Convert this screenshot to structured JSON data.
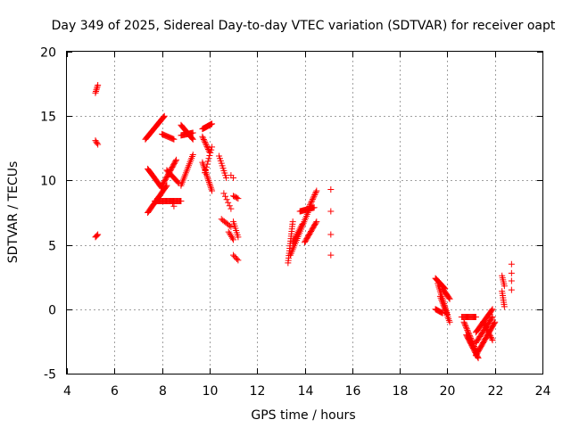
{
  "chart_data": {
    "type": "scatter",
    "title": "Day 349 of 2025, Sidereal Day-to-day VTEC variation (SDTVAR) for receiver oapt",
    "xlabel": "GPS time / hours",
    "ylabel": "SDTVAR / TECUs",
    "xlim": [
      4,
      24
    ],
    "ylim": [
      -5,
      20
    ],
    "xticks": [
      4,
      6,
      8,
      10,
      12,
      14,
      16,
      18,
      20,
      22,
      24
    ],
    "yticks": [
      -5,
      0,
      5,
      10,
      15,
      20
    ],
    "grid": true,
    "marker": "+",
    "color": "#ff0000",
    "segments": [
      {
        "x": [
          5.2,
          5.3
        ],
        "y": [
          16.8,
          17.4
        ],
        "n": 6
      },
      {
        "x": [
          5.2,
          5.3
        ],
        "y": [
          13.1,
          12.8
        ],
        "n": 4
      },
      {
        "x": [
          5.2,
          5.3
        ],
        "y": [
          5.6,
          5.8
        ],
        "n": 4
      },
      {
        "x": [
          7.3,
          8.1
        ],
        "y": [
          13.2,
          15.0
        ],
        "n": 30
      },
      {
        "x": [
          8.0,
          8.5
        ],
        "y": [
          13.6,
          13.2
        ],
        "n": 14
      },
      {
        "x": [
          7.4,
          8.0
        ],
        "y": [
          10.9,
          9.4
        ],
        "n": 22
      },
      {
        "x": [
          7.4,
          8.2
        ],
        "y": [
          7.5,
          9.6
        ],
        "n": 28
      },
      {
        "x": [
          7.7,
          8.8
        ],
        "y": [
          8.4,
          8.4
        ],
        "n": 34
      },
      {
        "x": [
          8.0,
          8.6
        ],
        "y": [
          9.6,
          11.6
        ],
        "n": 22
      },
      {
        "x": [
          8.2,
          8.7
        ],
        "y": [
          10.8,
          9.8
        ],
        "n": 14
      },
      {
        "x": [
          8.4,
          8.5
        ],
        "y": [
          8.4,
          8.0
        ],
        "n": 3
      },
      {
        "x": [
          8.8,
          9.3
        ],
        "y": [
          14.3,
          13.2
        ],
        "n": 18
      },
      {
        "x": [
          8.8,
          9.3
        ],
        "y": [
          13.5,
          13.7
        ],
        "n": 16
      },
      {
        "x": [
          8.8,
          9.3
        ],
        "y": [
          9.6,
          12.0
        ],
        "n": 18
      },
      {
        "x": [
          9.7,
          10.1
        ],
        "y": [
          14.0,
          14.4
        ],
        "n": 16
      },
      {
        "x": [
          9.7,
          10.0
        ],
        "y": [
          13.4,
          12.2
        ],
        "n": 12
      },
      {
        "x": [
          9.7,
          10.1
        ],
        "y": [
          11.4,
          9.2
        ],
        "n": 18
      },
      {
        "x": [
          9.8,
          10.1
        ],
        "y": [
          10.6,
          12.6
        ],
        "n": 10
      },
      {
        "x": [
          10.4,
          10.7
        ],
        "y": [
          11.9,
          10.2
        ],
        "n": 10
      },
      {
        "x": [
          10.5,
          10.9
        ],
        "y": [
          7.0,
          6.4
        ],
        "n": 8
      },
      {
        "x": [
          10.6,
          10.9
        ],
        "y": [
          9.0,
          7.8
        ],
        "n": 6
      },
      {
        "x": [
          10.8,
          11.0
        ],
        "y": [
          6.0,
          5.4
        ],
        "n": 6
      },
      {
        "x": [
          10.9,
          11.0
        ],
        "y": [
          10.4,
          10.2
        ],
        "n": 2
      },
      {
        "x": [
          11.0,
          11.2
        ],
        "y": [
          8.8,
          8.6
        ],
        "n": 5
      },
      {
        "x": [
          11.0,
          11.2
        ],
        "y": [
          6.8,
          5.6
        ],
        "n": 8
      },
      {
        "x": [
          11.0,
          11.2
        ],
        "y": [
          4.2,
          3.8
        ],
        "n": 5
      },
      {
        "x": [
          13.3,
          13.5
        ],
        "y": [
          3.6,
          6.8
        ],
        "n": 18
      },
      {
        "x": [
          13.4,
          14.2
        ],
        "y": [
          4.2,
          7.8
        ],
        "n": 26
      },
      {
        "x": [
          13.5,
          13.9
        ],
        "y": [
          5.2,
          6.6
        ],
        "n": 12
      },
      {
        "x": [
          13.8,
          14.4
        ],
        "y": [
          7.6,
          7.9
        ],
        "n": 20
      },
      {
        "x": [
          14.0,
          14.5
        ],
        "y": [
          5.2,
          6.8
        ],
        "n": 18
      },
      {
        "x": [
          14.2,
          14.5
        ],
        "y": [
          8.0,
          9.2
        ],
        "n": 12
      },
      {
        "x": [
          15.1,
          15.1
        ],
        "y": [
          9.3,
          9.3
        ],
        "n": 1
      },
      {
        "x": [
          15.1,
          15.1
        ],
        "y": [
          7.6,
          7.6
        ],
        "n": 1
      },
      {
        "x": [
          15.1,
          15.1
        ],
        "y": [
          5.8,
          5.8
        ],
        "n": 1
      },
      {
        "x": [
          15.1,
          15.1
        ],
        "y": [
          4.2,
          4.2
        ],
        "n": 1
      },
      {
        "x": [
          19.5,
          19.9
        ],
        "y": [
          2.4,
          1.6
        ],
        "n": 16
      },
      {
        "x": [
          19.5,
          19.8
        ],
        "y": [
          0.0,
          -0.3
        ],
        "n": 10
      },
      {
        "x": [
          19.6,
          20.0
        ],
        "y": [
          2.0,
          -0.4
        ],
        "n": 18
      },
      {
        "x": [
          19.7,
          20.1
        ],
        "y": [
          1.0,
          -1.0
        ],
        "n": 16
      },
      {
        "x": [
          19.8,
          20.1
        ],
        "y": [
          1.6,
          0.8
        ],
        "n": 12
      },
      {
        "x": [
          20.6,
          21.2
        ],
        "y": [
          -0.6,
          -0.6
        ],
        "n": 18
      },
      {
        "x": [
          20.7,
          21.2
        ],
        "y": [
          -1.0,
          -3.2
        ],
        "n": 22
      },
      {
        "x": [
          20.8,
          21.3
        ],
        "y": [
          -2.0,
          -3.8
        ],
        "n": 22
      },
      {
        "x": [
          21.2,
          22.0
        ],
        "y": [
          -3.6,
          -1.0
        ],
        "n": 30
      },
      {
        "x": [
          21.2,
          21.9
        ],
        "y": [
          -1.8,
          0.0
        ],
        "n": 24
      },
      {
        "x": [
          21.2,
          21.9
        ],
        "y": [
          -2.6,
          -0.6
        ],
        "n": 22
      },
      {
        "x": [
          21.5,
          21.9
        ],
        "y": [
          -1.0,
          -2.4
        ],
        "n": 14
      },
      {
        "x": [
          22.3,
          22.4
        ],
        "y": [
          2.6,
          1.8
        ],
        "n": 6
      },
      {
        "x": [
          22.3,
          22.4
        ],
        "y": [
          1.4,
          0.2
        ],
        "n": 8
      },
      {
        "x": [
          22.7,
          22.7
        ],
        "y": [
          3.5,
          3.5
        ],
        "n": 1
      },
      {
        "x": [
          22.7,
          22.7
        ],
        "y": [
          2.8,
          2.8
        ],
        "n": 1
      },
      {
        "x": [
          22.7,
          22.7
        ],
        "y": [
          2.2,
          2.2
        ],
        "n": 1
      },
      {
        "x": [
          22.7,
          22.7
        ],
        "y": [
          1.5,
          1.5
        ],
        "n": 1
      }
    ]
  }
}
